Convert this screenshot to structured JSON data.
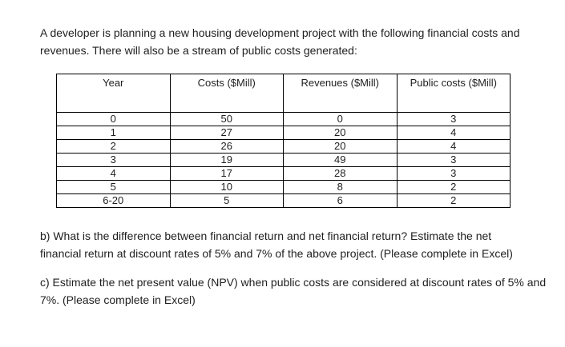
{
  "colors": {
    "background": "#ffffff",
    "text": "#1f1f1f",
    "table_border": "#000000"
  },
  "intro": {
    "line1": "A developer is planning a new housing development project with the following financial costs and",
    "line2": "revenues. There will also be a stream of public costs generated:"
  },
  "table": {
    "headers": [
      "Year",
      "Costs ($Mill)",
      "Revenues ($Mill)",
      "Public costs ($Mill)"
    ],
    "rows": [
      [
        "0",
        "50",
        "0",
        "3"
      ],
      [
        "1",
        "27",
        "20",
        "4"
      ],
      [
        "2",
        "26",
        "20",
        "4"
      ],
      [
        "3",
        "19",
        "49",
        "3"
      ],
      [
        "4",
        "17",
        "28",
        "3"
      ],
      [
        "5",
        "10",
        "8",
        "2"
      ],
      [
        "6-20",
        "5",
        "6",
        "2"
      ]
    ]
  },
  "question_b": {
    "line1": "b) What is the difference between financial return and net financial return? Estimate the net",
    "line2": "financial return at discount rates of 5% and 7% of the above project. (Please complete in Excel)"
  },
  "question_c": {
    "line1": "c) Estimate the net present value (NPV) when public costs are considered at discount rates of 5% and",
    "line2": "7%. (Please complete in Excel)"
  }
}
